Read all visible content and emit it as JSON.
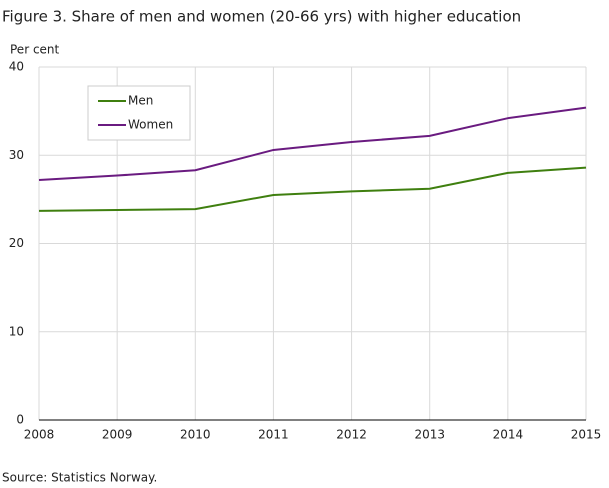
{
  "chart_data": {
    "type": "line",
    "title": "Figure 3. Share of men and women (20-66 yrs) with higher education",
    "y_label": "Per cent",
    "source": "Source: Statistics Norway.",
    "x": [
      2008,
      2009,
      2010,
      2011,
      2012,
      2013,
      2014,
      2015
    ],
    "xlim": [
      2008,
      2015
    ],
    "xticks": [
      2008,
      2009,
      2010,
      2011,
      2012,
      2013,
      2014,
      2015
    ],
    "ylim": [
      0,
      40
    ],
    "yticks": [
      0,
      10,
      20,
      30,
      40
    ],
    "grid": true,
    "legend": "upper-left",
    "series": [
      {
        "name": "Men",
        "color": "#3f7f0f",
        "values": [
          23.7,
          23.8,
          23.9,
          25.5,
          25.9,
          26.2,
          28.0,
          28.6
        ]
      },
      {
        "name": "Women",
        "color": "#6a1b80",
        "values": [
          27.2,
          27.7,
          28.3,
          30.6,
          31.5,
          32.2,
          34.2,
          35.4
        ]
      }
    ]
  }
}
